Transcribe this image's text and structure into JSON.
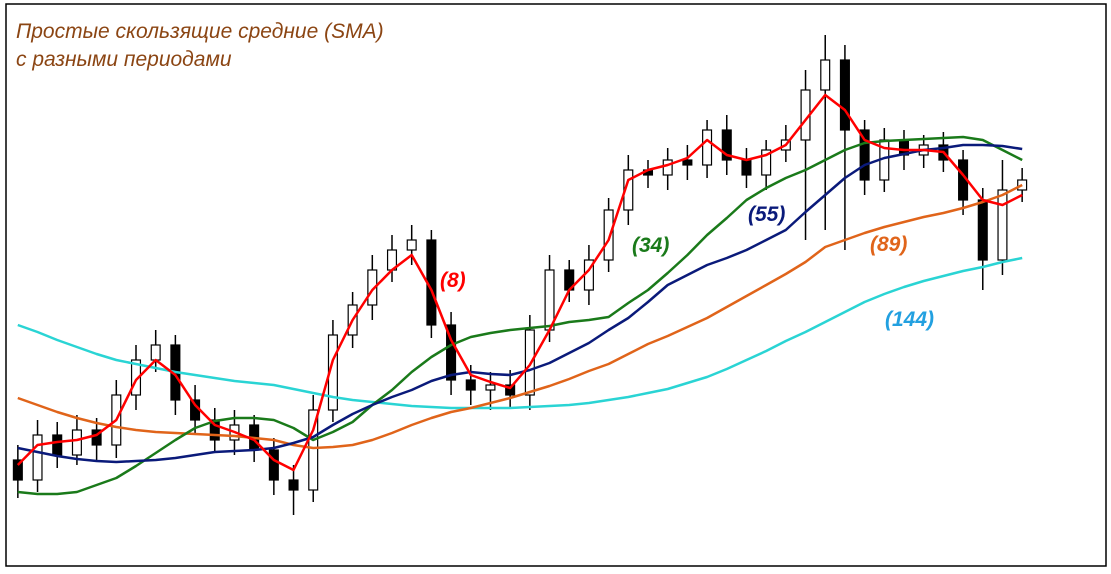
{
  "chart_data": {
    "type": "candlestick",
    "title": [
      "Простые скользящие средние (SMA)",
      "с разными периодами"
    ],
    "x": [
      0,
      1,
      2,
      3,
      4,
      5,
      6,
      7,
      8,
      9,
      10,
      11,
      12,
      13,
      14,
      15,
      16,
      17,
      18,
      19,
      20,
      21,
      22,
      23,
      24,
      25,
      26,
      27,
      28,
      29,
      30,
      31,
      32,
      33,
      34,
      35,
      36,
      37,
      38,
      39,
      40,
      41,
      42,
      43,
      44,
      45,
      46,
      47,
      48,
      49,
      50,
      51
    ],
    "xlim": [
      -0.5,
      51.5
    ],
    "ylim": [
      0,
      560
    ],
    "open": [
      100,
      80,
      125,
      105,
      130,
      115,
      165,
      200,
      215,
      160,
      140,
      120,
      135,
      110,
      80,
      70,
      150,
      225,
      255,
      290,
      310,
      320,
      235,
      180,
      170,
      175,
      165,
      230,
      290,
      270,
      300,
      350,
      390,
      385,
      400,
      395,
      430,
      400,
      385,
      410,
      420,
      470,
      500,
      430,
      380,
      420,
      405,
      415,
      400,
      360,
      300,
      370
    ],
    "high": [
      115,
      140,
      138,
      145,
      142,
      180,
      215,
      230,
      225,
      175,
      152,
      150,
      145,
      122,
      95,
      165,
      240,
      268,
      305,
      325,
      335,
      330,
      248,
      195,
      188,
      190,
      245,
      305,
      300,
      315,
      362,
      405,
      400,
      412,
      415,
      440,
      445,
      412,
      420,
      435,
      490,
      525,
      515,
      440,
      432,
      430,
      425,
      428,
      410,
      372,
      400,
      392
    ],
    "low": [
      62,
      68,
      92,
      95,
      100,
      102,
      150,
      188,
      145,
      125,
      108,
      105,
      98,
      65,
      45,
      58,
      138,
      212,
      240,
      278,
      295,
      222,
      165,
      155,
      150,
      152,
      150,
      218,
      258,
      255,
      288,
      335,
      372,
      370,
      380,
      382,
      385,
      372,
      370,
      398,
      320,
      330,
      310,
      365,
      368,
      390,
      392,
      388,
      345,
      270,
      285,
      358
    ],
    "close": [
      80,
      125,
      105,
      130,
      115,
      165,
      200,
      215,
      160,
      140,
      120,
      135,
      110,
      80,
      70,
      150,
      225,
      255,
      290,
      310,
      320,
      235,
      180,
      170,
      175,
      165,
      230,
      290,
      270,
      300,
      350,
      390,
      385,
      400,
      395,
      430,
      400,
      385,
      410,
      420,
      470,
      500,
      430,
      380,
      420,
      405,
      415,
      400,
      360,
      300,
      370,
      380
    ],
    "series": [
      {
        "name": "(144)",
        "color": "#2ad4d4",
        "label_color": "#22a0e0",
        "values": [
          235,
          228,
          220,
          213,
          206,
          200,
          196,
          192,
          188,
          185,
          182,
          179,
          177,
          175,
          171,
          167,
          163,
          160,
          158,
          156,
          154,
          153,
          152,
          152,
          152,
          152,
          153,
          154,
          155,
          157,
          160,
          163,
          167,
          171,
          177,
          183,
          191,
          200,
          209,
          219,
          228,
          238,
          248,
          258,
          266,
          273,
          279,
          284,
          289,
          293,
          298,
          302
        ]
      },
      {
        "name": "(89)",
        "color": "#e0641a",
        "label_color": "#e0641a",
        "values": [
          162,
          155,
          148,
          142,
          137,
          133,
          130,
          128,
          127,
          126,
          125,
          124,
          122,
          120,
          115,
          112,
          113,
          115,
          120,
          127,
          135,
          142,
          148,
          152,
          157,
          162,
          168,
          174,
          181,
          189,
          196,
          206,
          216,
          224,
          233,
          242,
          253,
          264,
          275,
          286,
          298,
          313,
          320,
          327,
          333,
          338,
          343,
          347,
          352,
          358,
          365,
          375
        ]
      },
      {
        "name": "(34)",
        "color": "#1a7a1a",
        "label_color": "#1a7a1a",
        "values": [
          68,
          66,
          66,
          68,
          75,
          82,
          94,
          107,
          120,
          132,
          139,
          142,
          142,
          140,
          132,
          120,
          128,
          138,
          155,
          170,
          188,
          203,
          215,
          223,
          227,
          230,
          232,
          234,
          238,
          240,
          243,
          257,
          270,
          287,
          305,
          325,
          342,
          360,
          372,
          382,
          390,
          400,
          410,
          417,
          419,
          420,
          421,
          422,
          423,
          420,
          410,
          400
        ]
      },
      {
        "name": "(55)",
        "color": "#0a1a7a",
        "label_color": "#0a1a7a",
        "values": [
          112,
          108,
          104,
          101,
          99,
          98,
          99,
          100,
          102,
          105,
          108,
          109,
          110,
          112,
          117,
          123,
          135,
          146,
          155,
          163,
          170,
          179,
          185,
          188,
          186,
          185,
          190,
          197,
          207,
          217,
          230,
          242,
          258,
          275,
          285,
          295,
          302,
          310,
          320,
          330,
          348,
          365,
          382,
          395,
          402,
          406,
          410,
          412,
          415,
          415,
          414,
          411
        ]
      },
      {
        "name": "(8)",
        "color": "#ff0000",
        "label_color": "#ff0000",
        "values": [
          95,
          115,
          118,
          120,
          125,
          140,
          180,
          200,
          185,
          155,
          135,
          128,
          120,
          100,
          90,
          130,
          200,
          240,
          270,
          290,
          305,
          270,
          220,
          185,
          178,
          172,
          195,
          230,
          270,
          290,
          320,
          380,
          390,
          395,
          402,
          420,
          405,
          400,
          405,
          415,
          440,
          465,
          450,
          420,
          412,
          410,
          410,
          408,
          385,
          360,
          355,
          365
        ]
      }
    ]
  }
}
